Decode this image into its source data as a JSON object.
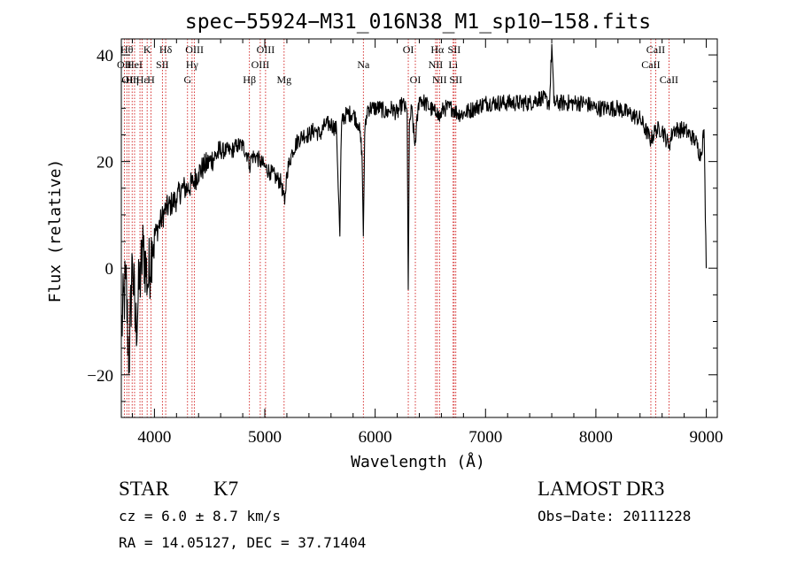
{
  "chart_data": {
    "type": "line",
    "title": "spec−55924−M31_016N38_M1_sp10−158.fits",
    "xlabel": "Wavelength (Å)",
    "ylabel": "Flux (relative)",
    "xlim": [
      3700,
      9100
    ],
    "ylim": [
      -28,
      43
    ],
    "x_ticks": [
      4000,
      5000,
      6000,
      7000,
      8000,
      9000
    ],
    "x_tick_labels": [
      "4000",
      "5000",
      "6000",
      "7000",
      "8000",
      "9000"
    ],
    "y_ticks": [
      -20,
      0,
      20,
      40
    ],
    "y_tick_labels": [
      "−20",
      "0",
      "20",
      "40"
    ],
    "series": [
      {
        "name": "spectrum",
        "x": [
          3700,
          3740,
          3770,
          3800,
          3830,
          3860,
          3900,
          3940,
          3980,
          4020,
          4060,
          4100,
          4150,
          4200,
          4250,
          4300,
          4350,
          4400,
          4450,
          4500,
          4550,
          4600,
          4650,
          4700,
          4750,
          4800,
          4850,
          4861,
          4880,
          4920,
          4960,
          5000,
          5050,
          5100,
          5150,
          5180,
          5200,
          5250,
          5300,
          5350,
          5400,
          5450,
          5500,
          5550,
          5600,
          5650,
          5680,
          5690,
          5700,
          5750,
          5800,
          5850,
          5880,
          5893,
          5905,
          5930,
          5980,
          6050,
          6100,
          6150,
          6200,
          6250,
          6290,
          6300,
          6310,
          6330,
          6360,
          6400,
          6450,
          6500,
          6550,
          6563,
          6580,
          6620,
          6700,
          6750,
          6800,
          6900,
          7000,
          7100,
          7200,
          7300,
          7400,
          7500,
          7580,
          7600,
          7620,
          7700,
          7800,
          7900,
          8000,
          8100,
          8200,
          8300,
          8400,
          8498,
          8542,
          8600,
          8662,
          8700,
          8800,
          8900,
          8950,
          8980,
          9000
        ],
        "y": [
          -12,
          -2,
          -18,
          2,
          -12,
          -4,
          4,
          -3,
          5,
          7,
          9,
          11,
          12,
          13,
          15,
          15,
          16,
          18,
          19,
          20,
          21,
          22,
          22,
          22,
          23,
          23,
          21,
          19,
          21,
          21,
          20,
          19,
          18,
          17,
          16,
          12,
          18,
          22,
          24,
          25,
          25,
          26,
          25,
          27,
          27,
          26,
          6,
          22,
          28,
          29,
          29,
          27,
          22,
          6,
          25,
          30,
          30,
          30,
          29,
          30,
          29,
          31,
          29,
          -4,
          27,
          30,
          23,
          32,
          31,
          30,
          29,
          30,
          28,
          30,
          30,
          29,
          29,
          30,
          31,
          31,
          31,
          31,
          31,
          32,
          31,
          42,
          31,
          31,
          31,
          31,
          30,
          30,
          30,
          29,
          28,
          24,
          26,
          26,
          23,
          26,
          26,
          24,
          21,
          26,
          0
        ]
      }
    ],
    "spectral_lines": [
      {
        "wl": 3727,
        "label": "OII",
        "row": 1
      },
      {
        "wl": 3750,
        "label": "Hθ",
        "row": 0
      },
      {
        "wl": 3770,
        "label": "OII",
        "row": 2
      },
      {
        "wl": 3798,
        "label": "Hη",
        "row": 2
      },
      {
        "wl": 3820,
        "label": "HeI",
        "row": 1
      },
      {
        "wl": 3869,
        "label": "",
        "row": -1
      },
      {
        "wl": 3889,
        "label": "Hε",
        "row": 2
      },
      {
        "wl": 3934,
        "label": "K",
        "row": 0
      },
      {
        "wl": 3968,
        "label": "H",
        "row": 2
      },
      {
        "wl": 4072,
        "label": "SII",
        "row": 1
      },
      {
        "wl": 4102,
        "label": "Hδ",
        "row": 0
      },
      {
        "wl": 4300,
        "label": "G",
        "row": 2
      },
      {
        "wl": 4341,
        "label": "Hγ",
        "row": 1
      },
      {
        "wl": 4363,
        "label": "OIII",
        "row": 0
      },
      {
        "wl": 4861,
        "label": "Hβ",
        "row": 2
      },
      {
        "wl": 4959,
        "label": "OIII",
        "row": 1
      },
      {
        "wl": 5007,
        "label": "OIII",
        "row": 0
      },
      {
        "wl": 5175,
        "label": "Mg",
        "row": 2
      },
      {
        "wl": 5893,
        "label": "Na",
        "row": 1
      },
      {
        "wl": 6300,
        "label": "OI",
        "row": 0
      },
      {
        "wl": 6364,
        "label": "OI",
        "row": 2
      },
      {
        "wl": 6548,
        "label": "NII",
        "row": 1
      },
      {
        "wl": 6563,
        "label": "Hα",
        "row": 0
      },
      {
        "wl": 6583,
        "label": "NII",
        "row": 2
      },
      {
        "wl": 6707,
        "label": "Li",
        "row": 1
      },
      {
        "wl": 6716,
        "label": "SII",
        "row": 0
      },
      {
        "wl": 6731,
        "label": "SII",
        "row": 2
      },
      {
        "wl": 8498,
        "label": "CaII",
        "row": 1
      },
      {
        "wl": 8542,
        "label": "CaII",
        "row": 0
      },
      {
        "wl": 8662,
        "label": "CaII",
        "row": 2
      }
    ]
  },
  "footer": {
    "class_label": "STAR",
    "subclass": "K7",
    "survey": "LAMOST DR3",
    "cz": "cz = 6.0 ± 8.7 km/s",
    "obs_date": "Obs−Date: 20111228",
    "radec": "RA =  14.05127, DEC =  37.71404"
  },
  "colors": {
    "line": "#000000",
    "marker_lines": "#cc0000",
    "background": "#ffffff"
  }
}
